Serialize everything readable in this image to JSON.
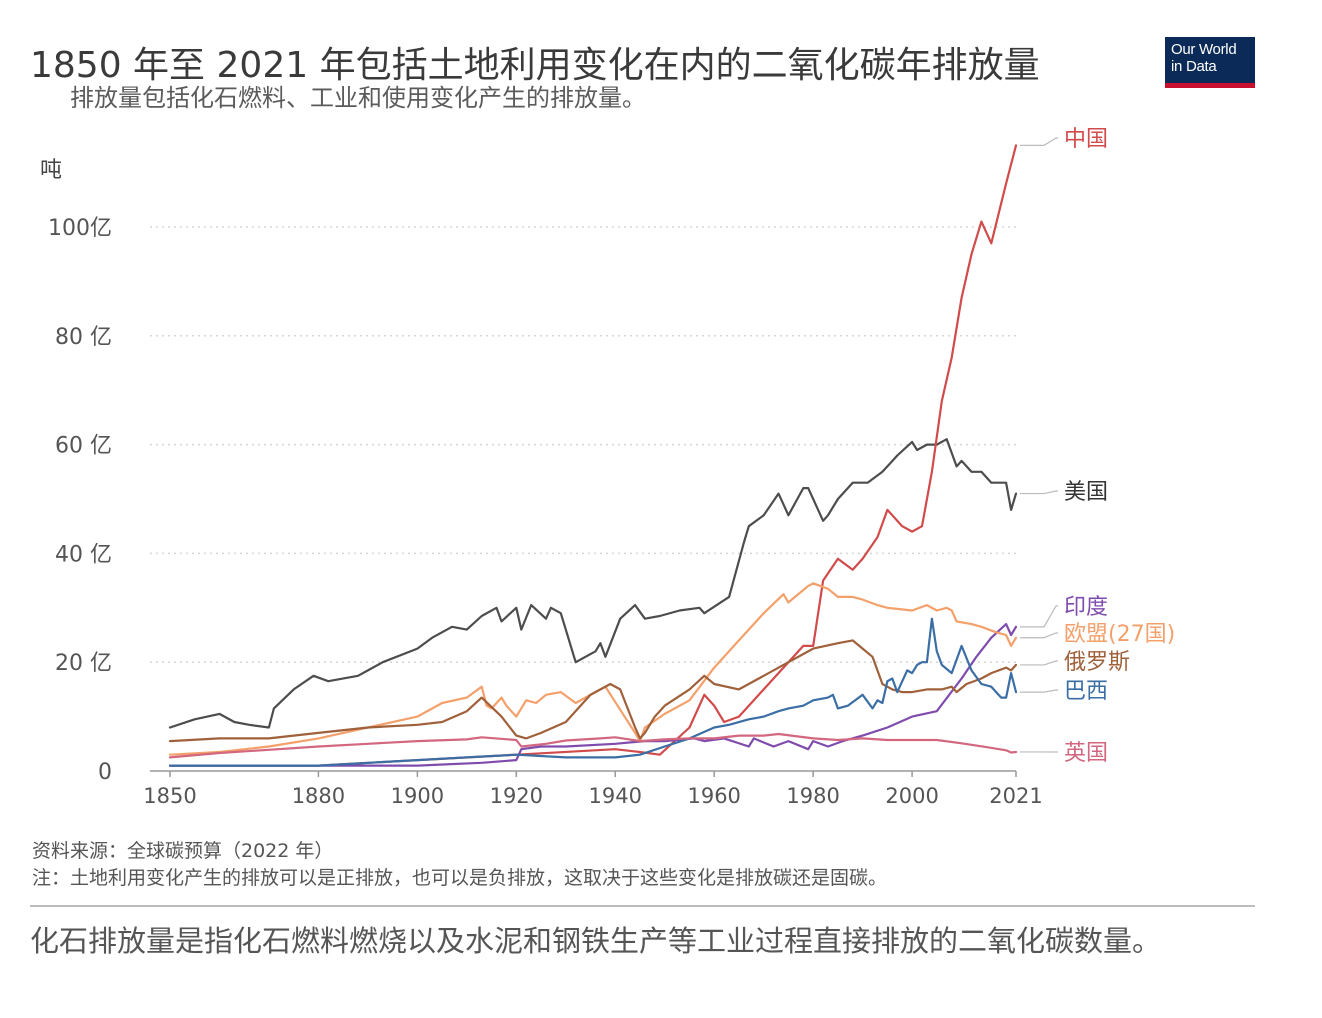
{
  "header": {
    "title": "1850 年至 2021 年包括土地利用变化在内的二氧化碳年排放量",
    "subtitle": "排放量包括化石燃料、工业和使用变化产生的排放量。"
  },
  "logo": {
    "line1": "Our World",
    "line2": "in Data"
  },
  "footer": {
    "source": "资料来源：全球碳预算（2022 年）",
    "note": "注：土地利用变化产生的排放可以是正排放，也可以是负排放，这取决于这些变化是排放碳还是固碳。",
    "caption": "化石排放量是指化石燃料燃烧以及水泥和钢铁生产等工业过程直接排放的二氧化碳数量。"
  },
  "chart_data": {
    "type": "line",
    "title": "1850 年至 2021 年包括土地利用变化在内的二氧化碳年排放量",
    "ylabel": "吨",
    "xlabel": "",
    "xlim": [
      1850,
      2021
    ],
    "ylim": [
      0,
      11000000000
    ],
    "y_ticks": [
      {
        "value": 0,
        "label": "0"
      },
      {
        "value": 2000000000,
        "label": "20 亿"
      },
      {
        "value": 4000000000,
        "label": "40 亿"
      },
      {
        "value": 6000000000,
        "label": "60 亿"
      },
      {
        "value": 8000000000,
        "label": "80 亿"
      },
      {
        "value": 10000000000,
        "label": "100亿"
      }
    ],
    "x_ticks": [
      {
        "value": 1850,
        "label": "1850"
      },
      {
        "value": 1880,
        "label": "1880"
      },
      {
        "value": 1900,
        "label": "1900"
      },
      {
        "value": 1920,
        "label": "1920"
      },
      {
        "value": 1940,
        "label": "1940"
      },
      {
        "value": 1960,
        "label": "1960"
      },
      {
        "value": 1980,
        "label": "1980"
      },
      {
        "value": 2000,
        "label": "2000"
      },
      {
        "value": 2021,
        "label": "2021"
      }
    ],
    "series": [
      {
        "name": "美国",
        "color": "#4d4d4d",
        "x": [
          1850,
          1855,
          1860,
          1863,
          1866,
          1870,
          1871,
          1875,
          1879,
          1882,
          1888,
          1890,
          1893,
          1900,
          1903,
          1907,
          1910,
          1913,
          1916,
          1917,
          1920,
          1921,
          1923,
          1926,
          1927,
          1929,
          1932,
          1936,
          1937,
          1938,
          1941,
          1944,
          1946,
          1949,
          1953,
          1957,
          1958,
          1963,
          1966,
          1967,
          1970,
          1973,
          1974,
          1975,
          1978,
          1979,
          1982,
          1983,
          1985,
          1988,
          1991,
          1994,
          1997,
          2000,
          2001,
          2003,
          2005,
          2007,
          2009,
          2010,
          2012,
          2014,
          2016,
          2019,
          2020,
          2021
        ],
        "values": [
          800000000,
          950000000,
          1050000000,
          900000000,
          850000000,
          800000000,
          1150000000,
          1500000000,
          1750000000,
          1650000000,
          1750000000,
          1850000000,
          2000000000,
          2250000000,
          2450000000,
          2650000000,
          2600000000,
          2850000000,
          3000000000,
          2750000000,
          3000000000,
          2600000000,
          3050000000,
          2800000000,
          3000000000,
          2900000000,
          2000000000,
          2200000000,
          2350000000,
          2100000000,
          2800000000,
          3050000000,
          2800000000,
          2850000000,
          2950000000,
          3000000000,
          2900000000,
          3200000000,
          4200000000,
          4500000000,
          4700000000,
          5100000000,
          4900000000,
          4700000000,
          5200000000,
          5200000000,
          4600000000,
          4700000000,
          5000000000,
          5300000000,
          5300000000,
          5500000000,
          5800000000,
          6050000000,
          5900000000,
          6000000000,
          6000000000,
          6100000000,
          5600000000,
          5700000000,
          5500000000,
          5500000000,
          5300000000,
          5300000000,
          4800000000,
          5100000000
        ]
      },
      {
        "name": "中国",
        "color": "#d14b4b",
        "x": [
          1850,
          1880,
          1900,
          1920,
          1940,
          1945,
          1949,
          1955,
          1958,
          1960,
          1962,
          1965,
          1970,
          1975,
          1978,
          1980,
          1982,
          1985,
          1988,
          1990,
          1993,
          1995,
          1998,
          2000,
          2002,
          2004,
          2006,
          2008,
          2010,
          2012,
          2014,
          2016,
          2019,
          2021
        ],
        "values": [
          100000000,
          100000000,
          200000000,
          300000000,
          400000000,
          350000000,
          300000000,
          800000000,
          1400000000,
          1200000000,
          900000000,
          1000000000,
          1500000000,
          2000000000,
          2300000000,
          2300000000,
          3500000000,
          3900000000,
          3700000000,
          3900000000,
          4300000000,
          4800000000,
          4500000000,
          4400000000,
          4500000000,
          5500000000,
          6800000000,
          7600000000,
          8700000000,
          9500000000,
          10100000000,
          9700000000,
          10800000000,
          11500000000
        ]
      },
      {
        "name": "印度",
        "color": "#7f4cae",
        "x": [
          1850,
          1880,
          1900,
          1913,
          1920,
          1921,
          1925,
          1930,
          1940,
          1946,
          1950,
          1956,
          1958,
          1962,
          1967,
          1968,
          1972,
          1975,
          1979,
          1980,
          1983,
          1986,
          1990,
          1995,
          2000,
          2005,
          2010,
          2013,
          2016,
          2019,
          2020,
          2021
        ],
        "values": [
          100000000,
          100000000,
          100000000,
          150000000,
          200000000,
          400000000,
          450000000,
          450000000,
          500000000,
          550000000,
          550000000,
          600000000,
          550000000,
          600000000,
          450000000,
          600000000,
          450000000,
          550000000,
          400000000,
          550000000,
          450000000,
          550000000,
          650000000,
          800000000,
          1000000000,
          1100000000,
          1700000000,
          2100000000,
          2450000000,
          2700000000,
          2500000000,
          2650000000
        ]
      },
      {
        "name": "欧盟(27国)",
        "color": "#f4a06b",
        "x": [
          1850,
          1860,
          1870,
          1880,
          1890,
          1900,
          1905,
          1910,
          1913,
          1914,
          1915,
          1917,
          1918,
          1920,
          1922,
          1924,
          1926,
          1929,
          1932,
          1937,
          1938,
          1944,
          1945,
          1946,
          1950,
          1955,
          1960,
          1965,
          1970,
          1974,
          1975,
          1979,
          1980,
          1983,
          1985,
          1988,
          1990,
          1993,
          1995,
          2000,
          2003,
          2005,
          2007,
          2008,
          2009,
          2012,
          2014,
          2017,
          2019,
          2020,
          2021
        ],
        "values": [
          300000000,
          350000000,
          450000000,
          600000000,
          800000000,
          1000000000,
          1250000000,
          1350000000,
          1550000000,
          1200000000,
          1150000000,
          1350000000,
          1200000000,
          1000000000,
          1300000000,
          1250000000,
          1400000000,
          1450000000,
          1250000000,
          1500000000,
          1550000000,
          700000000,
          550000000,
          800000000,
          1050000000,
          1300000000,
          1900000000,
          2400000000,
          2900000000,
          3250000000,
          3100000000,
          3400000000,
          3450000000,
          3350000000,
          3200000000,
          3200000000,
          3150000000,
          3050000000,
          3000000000,
          2950000000,
          3050000000,
          2950000000,
          3000000000,
          2950000000,
          2750000000,
          2700000000,
          2650000000,
          2550000000,
          2500000000,
          2300000000,
          2450000000
        ]
      },
      {
        "name": "俄罗斯",
        "color": "#a0603a",
        "x": [
          1850,
          1860,
          1870,
          1880,
          1890,
          1900,
          1905,
          1910,
          1913,
          1917,
          1920,
          1922,
          1925,
          1930,
          1935,
          1939,
          1941,
          1944,
          1945,
          1946,
          1948,
          1950,
          1955,
          1958,
          1960,
          1965,
          1970,
          1975,
          1980,
          1985,
          1988,
          1990,
          1992,
          1994,
          1996,
          1998,
          2000,
          2003,
          2006,
          2008,
          2009,
          2011,
          2014,
          2016,
          2019,
          2020,
          2021
        ],
        "values": [
          550000000,
          600000000,
          600000000,
          700000000,
          800000000,
          850000000,
          900000000,
          1100000000,
          1350000000,
          1000000000,
          650000000,
          600000000,
          700000000,
          900000000,
          1400000000,
          1600000000,
          1500000000,
          800000000,
          600000000,
          700000000,
          1000000000,
          1200000000,
          1500000000,
          1750000000,
          1600000000,
          1500000000,
          1750000000,
          2000000000,
          2250000000,
          2350000000,
          2400000000,
          2250000000,
          2100000000,
          1600000000,
          1500000000,
          1450000000,
          1450000000,
          1500000000,
          1500000000,
          1550000000,
          1450000000,
          1600000000,
          1700000000,
          1800000000,
          1900000000,
          1850000000,
          1950000000
        ]
      },
      {
        "name": "巴西",
        "color": "#3a6ea5",
        "x": [
          1850,
          1880,
          1900,
          1910,
          1920,
          1930,
          1940,
          1945,
          1950,
          1955,
          1960,
          1963,
          1967,
          1970,
          1973,
          1975,
          1978,
          1980,
          1983,
          1984,
          1985,
          1987,
          1990,
          1992,
          1993,
          1994,
          1995,
          1996,
          1997,
          1999,
          2000,
          2001,
          2002,
          2003,
          2004,
          2005,
          2006,
          2008,
          2010,
          2012,
          2014,
          2016,
          2018,
          2019,
          2020,
          2021
        ],
        "values": [
          100000000,
          100000000,
          200000000,
          250000000,
          300000000,
          250000000,
          250000000,
          300000000,
          450000000,
          600000000,
          800000000,
          850000000,
          950000000,
          1000000000,
          1100000000,
          1150000000,
          1200000000,
          1300000000,
          1350000000,
          1400000000,
          1150000000,
          1200000000,
          1400000000,
          1150000000,
          1300000000,
          1250000000,
          1650000000,
          1700000000,
          1450000000,
          1850000000,
          1800000000,
          1950000000,
          2000000000,
          2000000000,
          2800000000,
          2200000000,
          1950000000,
          1800000000,
          2300000000,
          1850000000,
          1600000000,
          1550000000,
          1350000000,
          1350000000,
          1800000000,
          1450000000
        ]
      },
      {
        "name": "英国",
        "color": "#d2677f",
        "x": [
          1850,
          1860,
          1870,
          1880,
          1890,
          1900,
          1910,
          1913,
          1920,
          1921,
          1926,
          1930,
          1937,
          1940,
          1945,
          1950,
          1955,
          1960,
          1965,
          1970,
          1973,
          1980,
          1985,
          1990,
          1995,
          2000,
          2005,
          2010,
          2015,
          2019,
          2020,
          2021
        ],
        "values": [
          250000000,
          330000000,
          390000000,
          450000000,
          500000000,
          550000000,
          580000000,
          620000000,
          570000000,
          450000000,
          500000000,
          560000000,
          600000000,
          620000000,
          550000000,
          580000000,
          600000000,
          600000000,
          650000000,
          650000000,
          680000000,
          600000000,
          570000000,
          600000000,
          570000000,
          570000000,
          570000000,
          510000000,
          440000000,
          380000000,
          340000000,
          350000000
        ]
      }
    ]
  }
}
